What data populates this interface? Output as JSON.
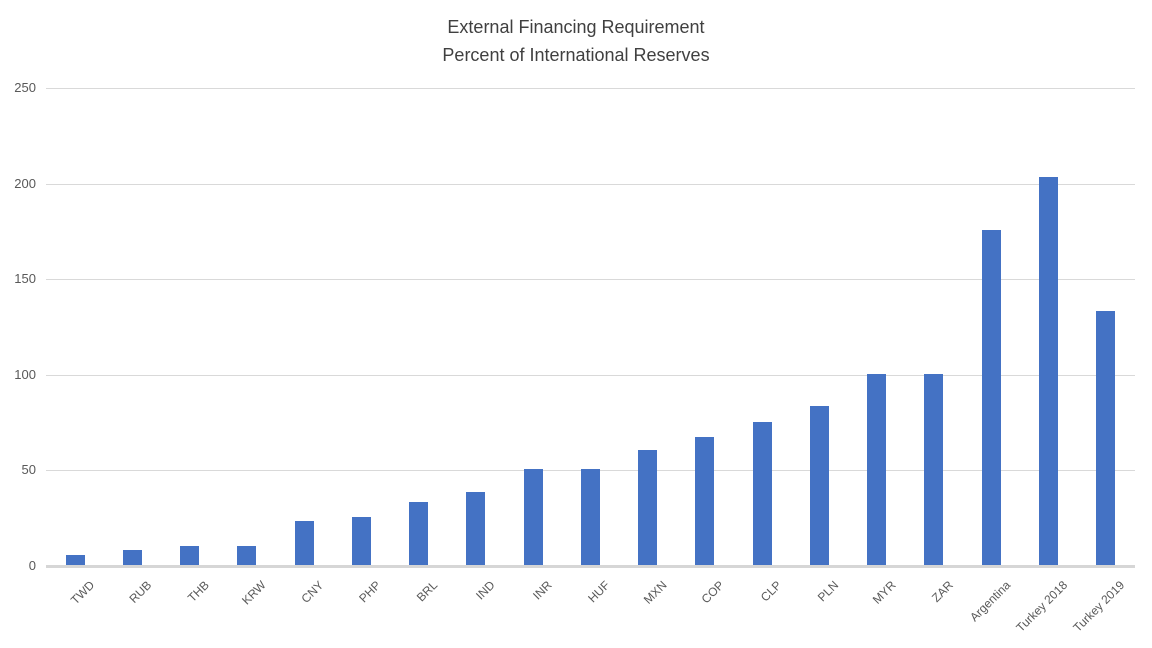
{
  "chart_data": {
    "type": "bar",
    "title": "External Financing Requirement",
    "subtitle": "Percent of International Reserves",
    "categories": [
      "TWD",
      "RUB",
      "THB",
      "KRW",
      "CNY",
      "PHP",
      "BRL",
      "IND",
      "INR",
      "HUF",
      "MXN",
      "COP",
      "CLP",
      "PLN",
      "MYR",
      "ZAR",
      "Argentina",
      "Turkey 2018",
      "Turkey 2019"
    ],
    "values": [
      5,
      8,
      10,
      10,
      23,
      25,
      33,
      38,
      50,
      50,
      60,
      67,
      75,
      83,
      100,
      100,
      175,
      203,
      133
    ],
    "xlabel": "",
    "ylabel": "",
    "ylim": [
      0,
      250
    ],
    "yticks": [
      0,
      50,
      100,
      150,
      200,
      250
    ],
    "grid": true,
    "legend_position": "none",
    "colors": {
      "bar": "#4472C4",
      "gridline": "#D9D9D9",
      "axis_line": "#D6D6D6",
      "tick_label": "#595959",
      "title": "#404040",
      "background": "#FFFFFF"
    }
  }
}
